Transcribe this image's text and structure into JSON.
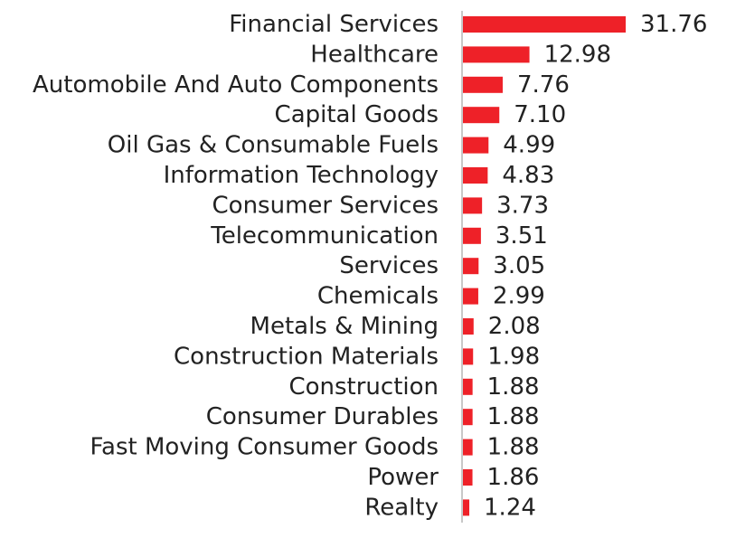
{
  "chart_data": {
    "type": "bar",
    "orientation": "horizontal",
    "title": "",
    "xlabel": "",
    "ylabel": "",
    "categories": [
      "Financial Services",
      "Healthcare",
      "Automobile And Auto Components",
      "Capital Goods",
      "Oil Gas & Consumable Fuels",
      "Information Technology",
      "Consumer Services",
      "Telecommunication",
      "Services",
      "Chemicals",
      "Metals & Mining",
      "Construction Materials",
      "Construction",
      "Consumer Durables",
      "Fast Moving Consumer Goods",
      "Power",
      "Realty"
    ],
    "values": [
      31.76,
      12.98,
      7.76,
      7.1,
      4.99,
      4.83,
      3.73,
      3.51,
      3.05,
      2.99,
      2.08,
      1.98,
      1.88,
      1.88,
      1.88,
      1.86,
      1.24
    ],
    "value_labels": [
      "31.76",
      "12.98",
      "7.76",
      "7.10",
      "4.99",
      "4.83",
      "3.73",
      "3.51",
      "3.05",
      "2.99",
      "2.08",
      "1.98",
      "1.88",
      "1.88",
      "1.88",
      "1.86",
      "1.24"
    ],
    "xlim": [
      0,
      31.76
    ],
    "grid": false,
    "legend": "none",
    "colors": {
      "bar": "#ee2128",
      "axis": "#c8c8c8",
      "text": "#222222"
    }
  }
}
